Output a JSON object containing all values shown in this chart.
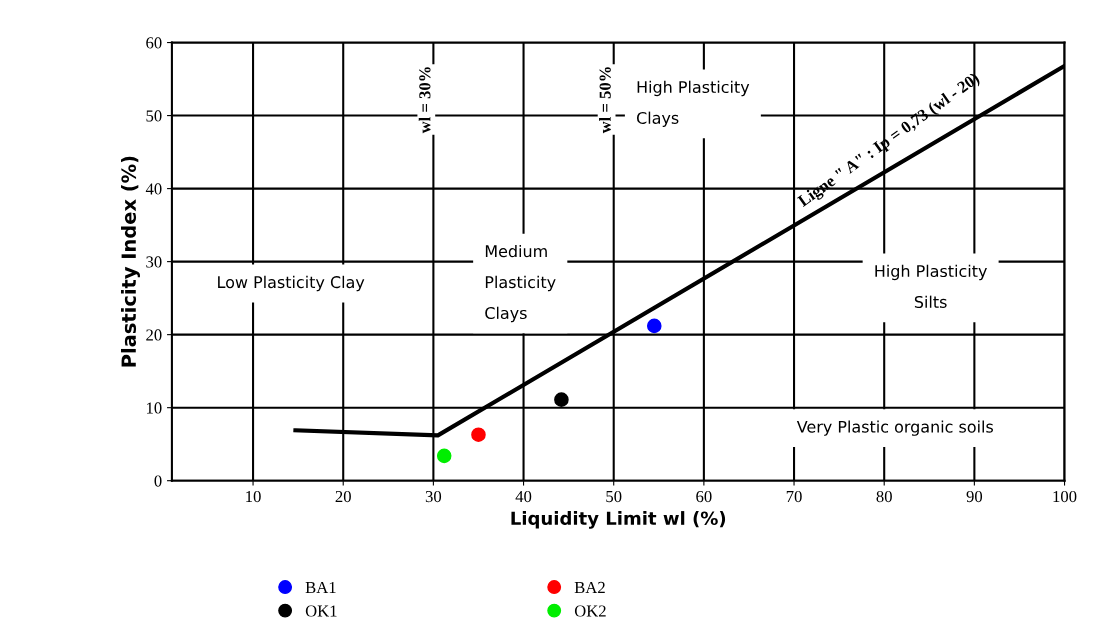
{
  "chart_data": {
    "type": "scatter",
    "xlabel": "Liquidity Limit wl (%)",
    "ylabel": "Plasticity Index (%)",
    "xlim": [
      1,
      100
    ],
    "ylim": [
      0,
      60
    ],
    "xticks": [
      10,
      20,
      30,
      40,
      50,
      60,
      70,
      80,
      90,
      100
    ],
    "yticks": [
      0,
      10,
      20,
      30,
      40,
      50,
      60
    ],
    "grid": true,
    "legend": "bottom",
    "marker": "circle",
    "series": [
      {
        "name": "BA1",
        "color": "#0000ff",
        "x": [
          54.5
        ],
        "values": [
          21.2
        ]
      },
      {
        "name": "BA2",
        "color": "#ff0000",
        "x": [
          35.0
        ],
        "values": [
          6.3
        ]
      },
      {
        "name": "OK1",
        "color": "#000000",
        "x": [
          44.2
        ],
        "values": [
          11.1
        ]
      },
      {
        "name": "OK2",
        "color": "#00ee00",
        "x": [
          31.2
        ],
        "values": [
          3.4
        ]
      },
      {
        "type": "line",
        "color": "#000000",
        "x": [
          14.7,
          30.5,
          100
        ],
        "values": [
          6.9,
          6.2,
          56.8
        ],
        "line_style": "solid",
        "marker": "none"
      }
    ],
    "annotations": [
      {
        "text": "Ligne \" A\" : Ip = 0,73 (wl - 20)",
        "x": 82,
        "y": 44
      },
      "High Plasticity\n\nClays",
      "Medium\n\nPlasticity\n\nClays",
      "Low Plasticity Clay",
      "High Plasticity\n\nSilts",
      "Very Plastic organic soils",
      "wl = 30%",
      "wl = 50%"
    ]
  }
}
